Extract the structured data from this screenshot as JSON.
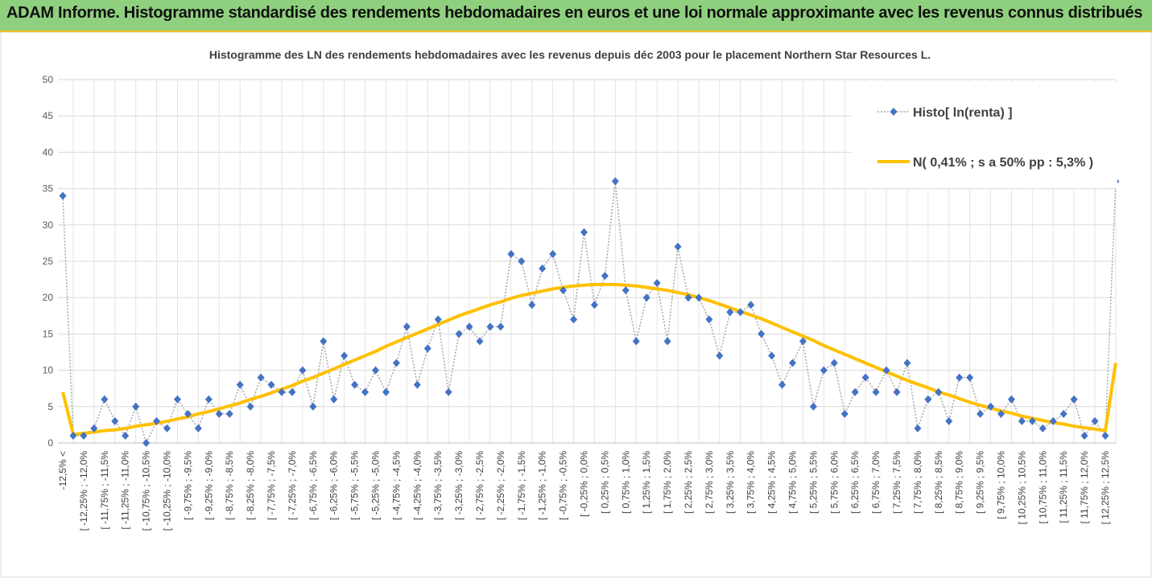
{
  "header": {
    "title": "ADAM Informe. Histogramme standardisé des rendements hebdomadaires en euros et une loi normale approximante avec les revenus connus distribués"
  },
  "chart_data": {
    "type": "line",
    "title": "Histogramme des LN des rendements hebdomadaires avec les revenus depuis déc 2003 pour le placement Northern Star Resources L.",
    "categories": [
      "-12,5% <",
      null,
      "[ -12,25% ; -12,0%",
      null,
      "[ -11,75% ; -11,5%",
      null,
      "[ -11,25% ; -11,0%",
      null,
      "[ -10,75% ; -10,5%",
      null,
      "[ -10,25% ; -10,0%",
      null,
      "[ -9,75% ; -9,5%",
      null,
      "[ -9,25% ; -9,0%",
      null,
      "[ -8,75% ; -8,5%",
      null,
      "[ -8,25% ; -8,0%",
      null,
      "[ -7,75% ; -7,5%",
      null,
      "[ -7,25% ; -7,0%",
      null,
      "[ -6,75% ; -6,5%",
      null,
      "[ -6,25% ; -6,0%",
      null,
      "[ -5,75% ; -5,5%",
      null,
      "[ -5,25% ; -5,0%",
      null,
      "[ -4,75% ; -4,5%",
      null,
      "[ -4,25% ; -4,0%",
      null,
      "[ -3,75% ; -3,5%",
      null,
      "[ -3,25% ; -3,0%",
      null,
      "[ -2,75% ; -2,5%",
      null,
      "[ -2,25% ; -2,0%",
      null,
      "[ -1,75% ; -1,5%",
      null,
      "[ -1,25% ; -1,0%",
      null,
      "[ -0,75% ; -0,5%",
      null,
      "[ -0,25% ; 0,0%",
      null,
      "[ 0,25% ; 0,5%",
      null,
      "[ 0,75% ; 1,0%",
      null,
      "[ 1,25% ; 1,5%",
      null,
      "[ 1,75% ; 2,0%",
      null,
      "[ 2,25% ; 2,5%",
      null,
      "[ 2,75% ; 3,0%",
      null,
      "[ 3,25% ; 3,5%",
      null,
      "[ 3,75% ; 4,0%",
      null,
      "[ 4,25% ; 4,5%",
      null,
      "[ 4,75% ; 5,0%",
      null,
      "[ 5,25% ; 5,5%",
      null,
      "[ 5,75% ; 6,0%",
      null,
      "[ 6,25% ; 6,5%",
      null,
      "[ 6,75% ; 7,0%",
      null,
      "[ 7,25% ; 7,5%",
      null,
      "[ 7,75% ; 8,0%",
      null,
      "[ 8,25% ; 8,5%",
      null,
      "[ 8,75% ; 9,0%",
      null,
      "[ 9,25% ; 9,5%",
      null,
      "[ 9,75% ; 10,0%",
      null,
      "[ 10,25% ; 10,5%",
      null,
      "[ 10,75% ; 11,0%",
      null,
      "[ 11,25% ; 11,5%",
      null,
      "[ 11,75% ; 12,0%",
      null,
      "[ 12,25% ; 12,5%",
      null
    ],
    "series": [
      {
        "name": "Histo[ ln(renta) ]",
        "color": "#4472c4",
        "values": [
          34,
          1,
          1,
          2,
          6,
          3,
          1,
          5,
          0,
          3,
          2,
          6,
          4,
          2,
          6,
          4,
          4,
          8,
          5,
          9,
          8,
          7,
          7,
          10,
          5,
          14,
          6,
          12,
          8,
          7,
          10,
          7,
          11,
          16,
          8,
          13,
          17,
          7,
          15,
          16,
          14,
          16,
          16,
          26,
          25,
          19,
          24,
          26,
          21,
          17,
          29,
          19,
          23,
          36,
          21,
          14,
          20,
          22,
          14,
          27,
          20,
          20,
          17,
          12,
          18,
          18,
          19,
          15,
          12,
          8,
          11,
          14,
          5,
          10,
          11,
          4,
          7,
          9,
          7,
          10,
          7,
          11,
          2,
          6,
          7,
          3,
          9,
          9,
          4,
          5,
          4,
          6,
          3,
          3,
          2,
          3,
          4,
          6,
          1,
          3,
          1,
          36
        ]
      },
      {
        "name": "N( 0,41% ; s a 50% pp : 5,3% )",
        "color": "#ffc000",
        "values": [
          7,
          1.2,
          1.3,
          1.5,
          1.7,
          1.8,
          2.0,
          2.3,
          2.5,
          2.7,
          3.0,
          3.3,
          3.6,
          4.0,
          4.3,
          4.7,
          5.1,
          5.5,
          6.0,
          6.4,
          6.9,
          7.4,
          7.9,
          8.5,
          9.0,
          9.6,
          10.2,
          10.8,
          11.4,
          12.0,
          12.6,
          13.3,
          13.9,
          14.5,
          15.1,
          15.7,
          16.3,
          16.9,
          17.5,
          18.0,
          18.5,
          19.0,
          19.4,
          19.9,
          20.3,
          20.6,
          20.9,
          21.2,
          21.4,
          21.6,
          21.7,
          21.8,
          21.8,
          21.8,
          21.7,
          21.6,
          21.4,
          21.2,
          21.0,
          20.7,
          20.4,
          20.0,
          19.6,
          19.1,
          18.6,
          18.1,
          17.6,
          17.1,
          16.5,
          15.9,
          15.3,
          14.7,
          14.1,
          13.4,
          12.8,
          12.2,
          11.6,
          11.0,
          10.4,
          9.8,
          9.2,
          8.6,
          8.1,
          7.6,
          7.0,
          6.6,
          6.1,
          5.6,
          5.2,
          4.8,
          4.4,
          4.1,
          3.7,
          3.4,
          3.1,
          2.8,
          2.6,
          2.3,
          2.1,
          1.9,
          1.7,
          11
        ]
      }
    ],
    "ylim": [
      0,
      50
    ],
    "yticks": [
      0,
      5,
      10,
      15,
      20,
      25,
      30,
      35,
      40,
      45,
      50
    ],
    "grid": true,
    "legend": "top-right"
  }
}
